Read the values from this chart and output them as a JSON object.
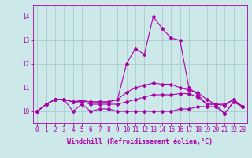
{
  "xlabel": "Windchill (Refroidissement éolien,°C)",
  "background_color": "#cce8e8",
  "grid_color": "#aacccc",
  "line_color": "#aa00aa",
  "x_values": [
    0,
    1,
    2,
    3,
    4,
    5,
    6,
    7,
    8,
    9,
    10,
    11,
    12,
    13,
    14,
    15,
    16,
    17,
    18,
    19,
    20,
    21,
    22,
    23
  ],
  "series": [
    [
      10.0,
      10.3,
      10.5,
      10.5,
      10.0,
      10.3,
      10.0,
      10.1,
      10.1,
      10.0,
      10.0,
      10.0,
      10.0,
      10.0,
      10.0,
      10.0,
      10.1,
      10.1,
      10.2,
      10.2,
      10.2,
      9.9,
      10.4,
      10.2
    ],
    [
      10.0,
      10.3,
      10.5,
      10.5,
      10.4,
      10.4,
      10.3,
      10.3,
      10.3,
      10.3,
      10.4,
      10.5,
      10.6,
      10.7,
      10.7,
      10.7,
      10.75,
      10.75,
      10.6,
      10.3,
      10.3,
      10.3,
      10.5,
      10.2
    ],
    [
      10.0,
      10.3,
      10.5,
      10.5,
      10.4,
      10.45,
      10.4,
      10.4,
      10.4,
      10.5,
      10.8,
      11.0,
      11.1,
      11.2,
      11.15,
      11.15,
      11.0,
      10.9,
      10.8,
      10.5,
      10.3,
      10.25,
      10.5,
      10.2
    ],
    [
      10.0,
      10.3,
      10.5,
      10.5,
      10.4,
      10.45,
      10.4,
      10.4,
      10.4,
      10.5,
      12.0,
      12.65,
      12.4,
      14.0,
      13.5,
      13.1,
      13.0,
      11.0,
      10.7,
      10.3,
      10.3,
      9.9,
      10.4,
      10.2
    ]
  ],
  "ylim": [
    9.5,
    14.5
  ],
  "yticks": [
    10,
    11,
    12,
    13,
    14
  ],
  "xticks": [
    0,
    1,
    2,
    3,
    4,
    5,
    6,
    7,
    8,
    9,
    10,
    11,
    12,
    13,
    14,
    15,
    16,
    17,
    18,
    19,
    20,
    21,
    22,
    23
  ],
  "marker": "D",
  "marker_size": 2.0,
  "linewidth": 0.8,
  "tick_fontsize": 5.5,
  "label_fontsize": 6.0
}
